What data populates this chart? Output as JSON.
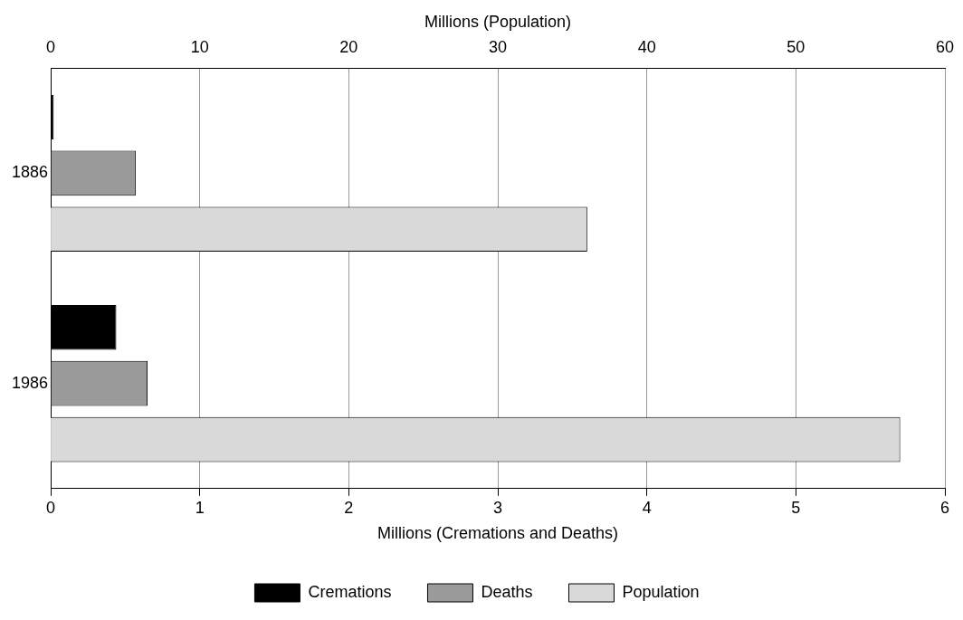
{
  "chart_data": {
    "type": "bar",
    "orientation": "horizontal",
    "categories": [
      "1886",
      "1986"
    ],
    "xlabel": "Millions (Cremations and Deaths)",
    "x2label": "Millions (Population)",
    "xlim": [
      0,
      6
    ],
    "xticks": [
      0,
      1,
      2,
      3,
      4,
      5,
      6
    ],
    "x2lim": [
      0,
      60
    ],
    "x2ticks": [
      0,
      10,
      20,
      30,
      40,
      50,
      60
    ],
    "series": [
      {
        "name": "Cremations",
        "color": "#000000",
        "values": [
          0.02,
          0.44
        ]
      },
      {
        "name": "Deaths",
        "color": "#9a9a9a",
        "values": [
          0.57,
          0.65
        ]
      },
      {
        "name": "Population",
        "color": "#d9d9d9",
        "values": [
          36,
          57
        ],
        "axis": "x2"
      }
    ],
    "grid": "x",
    "legend": "bottom"
  }
}
